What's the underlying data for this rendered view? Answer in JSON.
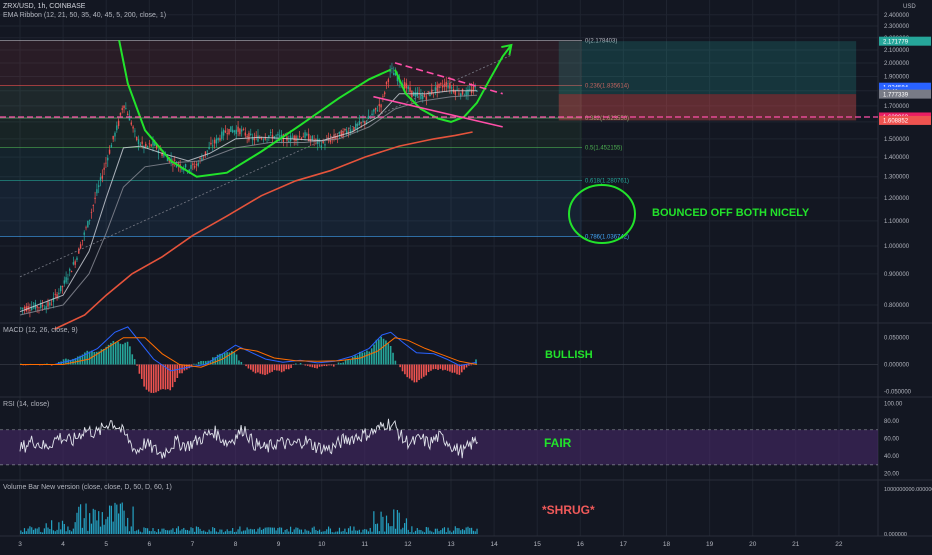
{
  "header": {
    "symbol_line": "ZRX/USD, 1h, COINBASE",
    "indicator_line": "EMA Ribbon (12, 21, 50, 35, 40, 45, 5, 200, close, 1)",
    "currency": "USD"
  },
  "colors": {
    "background": "#131722",
    "grid": "#1f2430",
    "axis_text": "#b2b5be",
    "green_annotation": "#22e32b",
    "pink_annotation": "#ff4fa8",
    "shrug_text": "#f05a5a",
    "ema200": "#e5533b",
    "rsi_band": "#4a2a6e",
    "volume_bar": "#25a3c4"
  },
  "annotations": {
    "bounced": "BOUNCED OFF BOTH NICELY",
    "bullish": "BULLISH",
    "fair": "FAIR",
    "shrug": "*SHRUG*"
  },
  "chart_data": [
    {
      "type": "line",
      "id": "price",
      "scale": "log",
      "ylim": [
        0.75,
        2.5
      ],
      "xlim": [
        3,
        22.5
      ],
      "x_ticks": [
        "3",
        "4",
        "5",
        "6",
        "7",
        "8",
        "9",
        "10",
        "11",
        "12",
        "13",
        "14",
        "15",
        "16",
        "17",
        "18",
        "19",
        "20",
        "21",
        "22"
      ],
      "y_ticks": [
        "2.400000",
        "2.300000",
        "2.200000",
        "2.100000",
        "2.000000",
        "1.900000",
        "1.800000",
        "1.700000",
        "1.600000",
        "1.500000",
        "1.400000",
        "1.300000",
        "1.200000",
        "1.100000",
        "1.000000",
        "0.900000",
        "0.800000"
      ],
      "price_labels": [
        {
          "text": "2.171779",
          "value": 2.171779,
          "color": "#26a69a"
        },
        {
          "text": "1.824584",
          "value": 1.824584,
          "color": "#2962ff"
        },
        {
          "text": "36:41",
          "value": 1.795,
          "color": "#2962ff"
        },
        {
          "text": "1.777339",
          "value": 1.777339,
          "color": "#787b86"
        },
        {
          "text": "1.629963",
          "value": 1.629963,
          "color": "#e91e63"
        },
        {
          "text": "1.608852",
          "value": 1.608852,
          "color": "#ef5350"
        }
      ],
      "fib_levels": [
        {
          "text": "0(2.178403)",
          "value": 2.178403,
          "color": "#b2b5be"
        },
        {
          "text": "0.236(1.835614)",
          "value": 1.835614,
          "color": "#ef5350"
        },
        {
          "text": "0.382(1.623550)",
          "value": 1.62355,
          "color": "#81c784"
        },
        {
          "text": "0.5(1.452155)",
          "value": 1.452155,
          "color": "#4caf50"
        },
        {
          "text": "0.618(1.280761)",
          "value": 1.280761,
          "color": "#26a69a"
        },
        {
          "text": "0.786(1.036742)",
          "value": 1.036742,
          "color": "#42a5f5"
        }
      ],
      "price_path": [
        [
          3.0,
          0.79
        ],
        [
          3.7,
          0.8
        ],
        [
          4.0,
          0.86
        ],
        [
          4.3,
          0.95
        ],
        [
          4.6,
          1.1
        ],
        [
          4.9,
          1.3
        ],
        [
          5.1,
          1.45
        ],
        [
          5.3,
          1.6
        ],
        [
          5.4,
          1.72
        ],
        [
          5.55,
          1.62
        ],
        [
          5.7,
          1.5
        ],
        [
          5.9,
          1.45
        ],
        [
          6.1,
          1.47
        ],
        [
          6.3,
          1.42
        ],
        [
          6.6,
          1.37
        ],
        [
          6.9,
          1.34
        ],
        [
          7.1,
          1.36
        ],
        [
          7.4,
          1.45
        ],
        [
          7.8,
          1.55
        ],
        [
          8.1,
          1.55
        ],
        [
          8.4,
          1.5
        ],
        [
          8.8,
          1.52
        ],
        [
          9.2,
          1.5
        ],
        [
          9.6,
          1.52
        ],
        [
          10.0,
          1.47
        ],
        [
          10.4,
          1.52
        ],
        [
          10.8,
          1.57
        ],
        [
          11.1,
          1.62
        ],
        [
          11.4,
          1.72
        ],
        [
          11.6,
          1.95
        ],
        [
          11.8,
          1.88
        ],
        [
          12.1,
          1.78
        ],
        [
          12.4,
          1.76
        ],
        [
          12.7,
          1.82
        ],
        [
          12.9,
          1.85
        ],
        [
          13.1,
          1.8
        ],
        [
          13.35,
          1.78
        ],
        [
          13.6,
          1.82
        ]
      ],
      "ema_fast": [
        [
          3.0,
          0.78
        ],
        [
          4.0,
          0.83
        ],
        [
          4.6,
          0.98
        ],
        [
          5.0,
          1.2
        ],
        [
          5.4,
          1.45
        ],
        [
          5.8,
          1.46
        ],
        [
          6.3,
          1.42
        ],
        [
          6.9,
          1.38
        ],
        [
          7.4,
          1.42
        ],
        [
          8.0,
          1.5
        ],
        [
          8.6,
          1.51
        ],
        [
          9.3,
          1.5
        ],
        [
          10.0,
          1.49
        ],
        [
          10.7,
          1.54
        ],
        [
          11.3,
          1.63
        ],
        [
          11.8,
          1.78
        ],
        [
          12.4,
          1.78
        ],
        [
          13.0,
          1.8
        ],
        [
          13.6,
          1.8
        ]
      ],
      "ema_mid": [
        [
          3.0,
          0.77
        ],
        [
          4.0,
          0.8
        ],
        [
          4.6,
          0.9
        ],
        [
          5.0,
          1.05
        ],
        [
          5.4,
          1.25
        ],
        [
          5.9,
          1.35
        ],
        [
          6.5,
          1.37
        ],
        [
          7.2,
          1.38
        ],
        [
          8.0,
          1.45
        ],
        [
          8.8,
          1.48
        ],
        [
          9.6,
          1.48
        ],
        [
          10.4,
          1.5
        ],
        [
          11.1,
          1.57
        ],
        [
          11.7,
          1.68
        ],
        [
          12.3,
          1.73
        ],
        [
          13.0,
          1.76
        ],
        [
          13.6,
          1.77
        ]
      ],
      "ema200": [
        [
          3.8,
          0.73
        ],
        [
          4.5,
          0.77
        ],
        [
          5.0,
          0.83
        ],
        [
          5.6,
          0.9
        ],
        [
          6.3,
          0.96
        ],
        [
          7.0,
          1.04
        ],
        [
          7.8,
          1.12
        ],
        [
          8.6,
          1.21
        ],
        [
          9.4,
          1.28
        ],
        [
          10.2,
          1.33
        ],
        [
          11.0,
          1.4
        ],
        [
          11.8,
          1.46
        ],
        [
          12.6,
          1.5
        ],
        [
          13.1,
          1.52
        ],
        [
          13.5,
          1.54
        ]
      ],
      "trendline": [
        [
          3.0,
          0.89
        ],
        [
          14.4,
          2.06
        ]
      ],
      "cup_curve": [
        [
          5.3,
          2.18
        ],
        [
          5.5,
          1.85
        ],
        [
          5.9,
          1.55
        ],
        [
          6.5,
          1.38
        ],
        [
          7.1,
          1.3
        ],
        [
          7.8,
          1.32
        ],
        [
          8.6,
          1.43
        ],
        [
          9.5,
          1.58
        ],
        [
          10.4,
          1.75
        ],
        [
          11.1,
          1.88
        ],
        [
          11.6,
          1.95
        ]
      ],
      "handle_curve": [
        [
          11.7,
          1.95
        ],
        [
          11.95,
          1.78
        ],
        [
          12.3,
          1.68
        ],
        [
          12.7,
          1.62
        ],
        [
          13.0,
          1.6
        ],
        [
          13.3,
          1.63
        ],
        [
          13.6,
          1.72
        ],
        [
          13.9,
          1.88
        ],
        [
          14.2,
          2.05
        ],
        [
          14.4,
          2.14
        ]
      ],
      "channel_top": [
        [
          11.7,
          2.0
        ],
        [
          14.2,
          1.78
        ]
      ],
      "channel_bottom": [
        [
          11.2,
          1.76
        ],
        [
          14.2,
          1.57
        ]
      ],
      "box_green": [
        15.5,
        22.4,
        1.777339,
        2.171779
      ],
      "box_red": [
        15.5,
        22.4,
        1.608852,
        1.777339
      ]
    },
    {
      "type": "bar",
      "id": "macd",
      "title": "MACD (12, 26, close, 9)",
      "ylim": [
        -0.055,
        0.068
      ],
      "y_ticks": [
        "0.050000",
        "0.000000",
        "-0.050000"
      ],
      "macd": [
        [
          3.0,
          0.0
        ],
        [
          3.8,
          0.0
        ],
        [
          4.3,
          0.01
        ],
        [
          4.8,
          0.03
        ],
        [
          5.2,
          0.06
        ],
        [
          5.5,
          0.07
        ],
        [
          5.8,
          0.04
        ],
        [
          6.1,
          0.01
        ],
        [
          6.5,
          -0.012
        ],
        [
          6.9,
          -0.005
        ],
        [
          7.3,
          0.0
        ],
        [
          7.7,
          0.02
        ],
        [
          8.0,
          0.036
        ],
        [
          8.3,
          0.025
        ],
        [
          8.7,
          0.01
        ],
        [
          9.1,
          0.004
        ],
        [
          9.5,
          0.008
        ],
        [
          9.9,
          0.003
        ],
        [
          10.3,
          0.006
        ],
        [
          10.7,
          0.015
        ],
        [
          11.1,
          0.03
        ],
        [
          11.4,
          0.055
        ],
        [
          11.6,
          0.06
        ],
        [
          11.9,
          0.04
        ],
        [
          12.2,
          0.022
        ],
        [
          12.6,
          0.02
        ],
        [
          12.9,
          0.01
        ],
        [
          13.2,
          -0.002
        ],
        [
          13.6,
          0.004
        ]
      ],
      "signal": [
        [
          3.0,
          0.0
        ],
        [
          4.0,
          0.0
        ],
        [
          4.6,
          0.01
        ],
        [
          5.0,
          0.03
        ],
        [
          5.4,
          0.05
        ],
        [
          5.9,
          0.05
        ],
        [
          6.3,
          0.02
        ],
        [
          6.7,
          0.0
        ],
        [
          7.2,
          -0.005
        ],
        [
          7.7,
          0.01
        ],
        [
          8.1,
          0.03
        ],
        [
          8.5,
          0.025
        ],
        [
          8.9,
          0.012
        ],
        [
          9.4,
          0.007
        ],
        [
          9.9,
          0.006
        ],
        [
          10.4,
          0.007
        ],
        [
          10.9,
          0.012
        ],
        [
          11.3,
          0.025
        ],
        [
          11.7,
          0.05
        ],
        [
          12.0,
          0.045
        ],
        [
          12.4,
          0.03
        ],
        [
          12.8,
          0.018
        ],
        [
          13.2,
          0.006
        ],
        [
          13.6,
          0.0
        ]
      ]
    },
    {
      "type": "line",
      "id": "rsi",
      "title": "RSI (14, close)",
      "ylim": [
        15,
        105
      ],
      "y_ticks": [
        "100.00",
        "80.00",
        "60.00",
        "40.00",
        "20.00"
      ],
      "band": [
        30,
        70
      ],
      "bounds": [
        [
          3.0,
          48
        ],
        [
          3.3,
          58
        ],
        [
          3.6,
          50
        ],
        [
          3.9,
          62
        ],
        [
          4.2,
          56
        ],
        [
          4.5,
          70
        ],
        [
          4.8,
          66
        ],
        [
          5.1,
          80
        ],
        [
          5.3,
          72
        ],
        [
          5.5,
          60
        ],
        [
          5.7,
          45
        ],
        [
          5.9,
          55
        ],
        [
          6.1,
          48
        ],
        [
          6.3,
          42
        ],
        [
          6.6,
          56
        ],
        [
          6.9,
          52
        ],
        [
          7.2,
          60
        ],
        [
          7.5,
          68
        ],
        [
          7.8,
          55
        ],
        [
          8.0,
          62
        ],
        [
          8.2,
          72
        ],
        [
          8.4,
          55
        ],
        [
          8.7,
          48
        ],
        [
          9.0,
          56
        ],
        [
          9.3,
          52
        ],
        [
          9.6,
          58
        ],
        [
          9.9,
          50
        ],
        [
          10.2,
          48
        ],
        [
          10.5,
          58
        ],
        [
          10.8,
          62
        ],
        [
          11.1,
          66
        ],
        [
          11.3,
          70
        ],
        [
          11.5,
          78
        ],
        [
          11.7,
          74
        ],
        [
          11.9,
          58
        ],
        [
          12.1,
          55
        ],
        [
          12.3,
          60
        ],
        [
          12.5,
          54
        ],
        [
          12.7,
          62
        ],
        [
          12.9,
          58
        ],
        [
          13.1,
          48
        ],
        [
          13.3,
          45
        ],
        [
          13.5,
          55
        ],
        [
          13.6,
          58
        ]
      ]
    },
    {
      "type": "bar",
      "id": "volume",
      "title": "Volume Bar New version (close, close, D, 50, D, 60, 1)",
      "ylim": [
        0,
        1150000000
      ],
      "y_ticks": [
        "1000000000.000000",
        "0.000000"
      ]
    }
  ]
}
